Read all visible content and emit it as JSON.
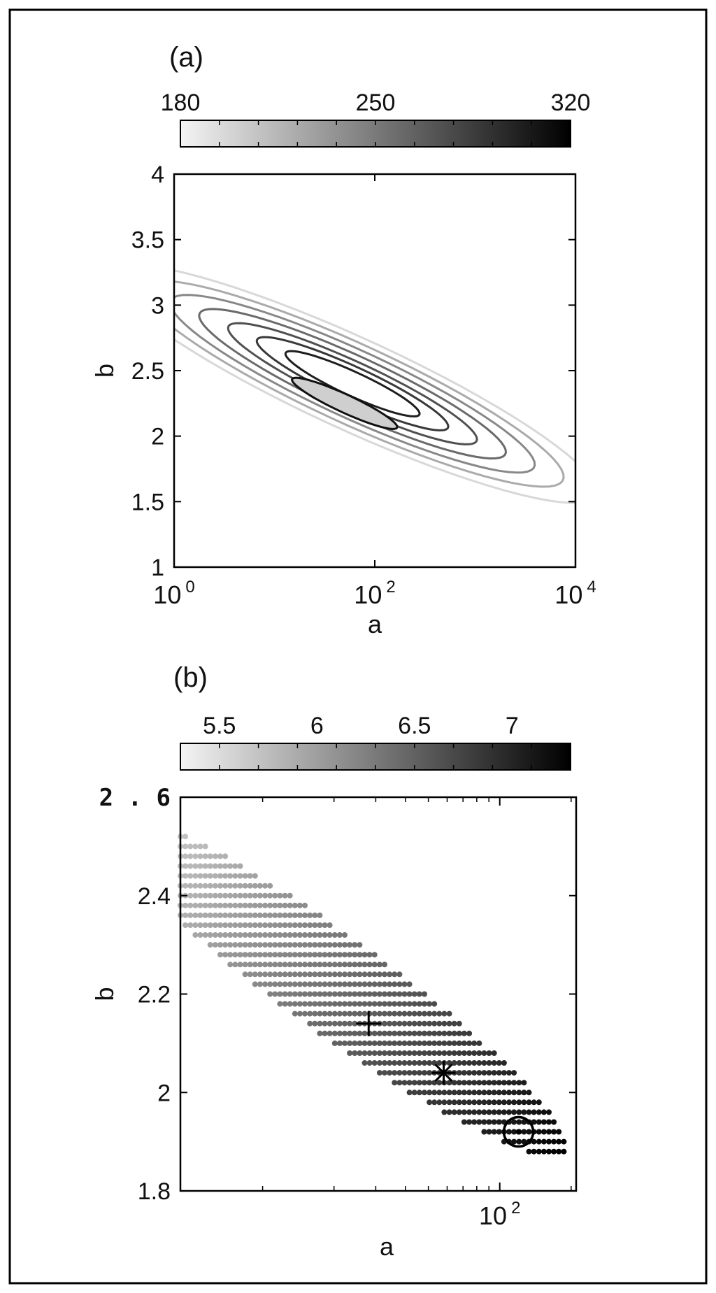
{
  "chart_data": [
    {
      "panel_label": "(a)",
      "type": "heatmap",
      "subtype": "contour",
      "x_scale": "log",
      "xlabel": "a",
      "ylabel": "b",
      "xlim": [
        1,
        10000
      ],
      "ylim": [
        1,
        4
      ],
      "x_ticks": [
        {
          "base": "10",
          "exp": "0",
          "value": 1
        },
        {
          "base": "10",
          "exp": "2",
          "value": 100
        },
        {
          "base": "10",
          "exp": "4",
          "value": 10000
        }
      ],
      "y_ticks": [
        "1",
        "1.5",
        "2",
        "2.5",
        "3",
        "3.5",
        "4"
      ],
      "colorbar": {
        "range": [
          180,
          320
        ],
        "tick_labels": [
          "180",
          "250",
          "320"
        ],
        "colormap": [
          "#f4f4f4",
          "#000000"
        ]
      },
      "contours": [
        {
          "level": 200,
          "color": "#d8d8d8",
          "center": [
            60,
            2.4
          ],
          "semi_major_decades": 2.55,
          "semi_minor_decades": 0.23
        },
        {
          "level": 215,
          "color": "#aaaaaa",
          "center": [
            60,
            2.4
          ],
          "semi_major_decades": 2.2,
          "semi_minor_decades": 0.2
        },
        {
          "level": 230,
          "color": "#888888",
          "center": [
            60,
            2.4
          ],
          "semi_major_decades": 1.9,
          "semi_minor_decades": 0.17
        },
        {
          "level": 245,
          "color": "#6a6a6a",
          "center": [
            60,
            2.4
          ],
          "semi_major_decades": 1.6,
          "semi_minor_decades": 0.14
        },
        {
          "level": 260,
          "color": "#505050",
          "center": [
            60,
            2.4
          ],
          "semi_major_decades": 1.3,
          "semi_minor_decades": 0.11
        },
        {
          "level": 275,
          "color": "#383838",
          "center": [
            60,
            2.4
          ],
          "semi_major_decades": 1.0,
          "semi_minor_decades": 0.085
        },
        {
          "level": 290,
          "color": "#1e1e1e",
          "center": [
            60,
            2.4
          ],
          "semi_major_decades": 0.7,
          "semi_minor_decades": 0.06
        }
      ],
      "inner_region": {
        "center": [
          50,
          2.25
        ],
        "semi_major_decades": 0.55,
        "semi_minor_decades": 0.045,
        "color": "#cfcfcf"
      }
    },
    {
      "panel_label": "(b)",
      "type": "scatter",
      "x_scale": "log",
      "xlabel": "a",
      "ylabel": "b",
      "xlim": [
        4.5,
        210
      ],
      "ylim": [
        1.8,
        2.6
      ],
      "x_ticks": [
        {
          "base": "10",
          "exp": "2",
          "value": 100
        }
      ],
      "x_minor_ticks": [
        10,
        20,
        30,
        40,
        50,
        60,
        70,
        80,
        90,
        200
      ],
      "y_ticks": [
        "1.8",
        "2",
        "2.2",
        "2.4",
        "2.6"
      ],
      "colorbar": {
        "range": [
          5.3,
          7.3
        ],
        "tick_labels": [
          "5.5",
          "6",
          "6.5",
          "7"
        ],
        "tick_values": [
          5.5,
          6,
          6.5,
          7
        ],
        "colormap": [
          "#f4f4f4",
          "#000000"
        ]
      },
      "grid_points": {
        "center": [
          20,
          2.22
        ],
        "log_x_step": 0.021,
        "b_step": 0.02,
        "color_value_range": [
          5.3,
          7.3
        ],
        "region": {
          "semi_major": 1.0,
          "semi_minor": 0.23,
          "rotation_deg": -36
        }
      },
      "markers": [
        {
          "symbol": "plus",
          "a": 28,
          "b": 2.14
        },
        {
          "symbol": "asterisk",
          "a": 58,
          "b": 2.04
        },
        {
          "symbol": "circle-dot",
          "a": 120,
          "b": 1.92
        }
      ]
    }
  ]
}
